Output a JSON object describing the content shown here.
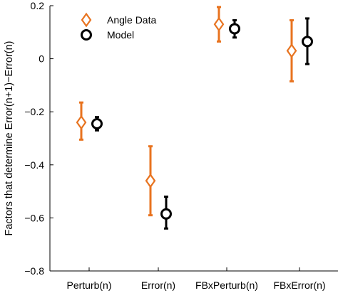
{
  "chart_data": {
    "type": "scatter",
    "subtype": "point-with-errorbars",
    "title": "",
    "xlabel": "",
    "ylabel": "Factors that determine Error(n+1)−Error(n)",
    "ylim": [
      -0.8,
      0.2
    ],
    "yticks": [
      0.2,
      0,
      -0.2,
      -0.4,
      -0.6,
      -0.8
    ],
    "ytick_labels": [
      "0.2",
      "0",
      "−0.2",
      "−0.4",
      "−0.6",
      "−0.8"
    ],
    "categories": [
      "Perturb(n)",
      "Error(n)",
      "FBxPerturb(n)",
      "FBxError(n)"
    ],
    "grid": false,
    "legend_position": "top-left",
    "series": [
      {
        "name": "Angle Data",
        "marker": "diamond",
        "color": "#E8731F",
        "values": [
          -0.24,
          -0.46,
          0.13,
          0.03
        ],
        "err_low": [
          -0.305,
          -0.59,
          0.065,
          -0.085
        ],
        "err_high": [
          -0.165,
          -0.33,
          0.195,
          0.145
        ]
      },
      {
        "name": "Model",
        "marker": "circle",
        "color": "#000000",
        "values": [
          -0.245,
          -0.585,
          0.113,
          0.065
        ],
        "err_low": [
          -0.27,
          -0.64,
          0.08,
          -0.02
        ],
        "err_high": [
          -0.22,
          -0.52,
          0.145,
          0.152
        ]
      }
    ]
  }
}
